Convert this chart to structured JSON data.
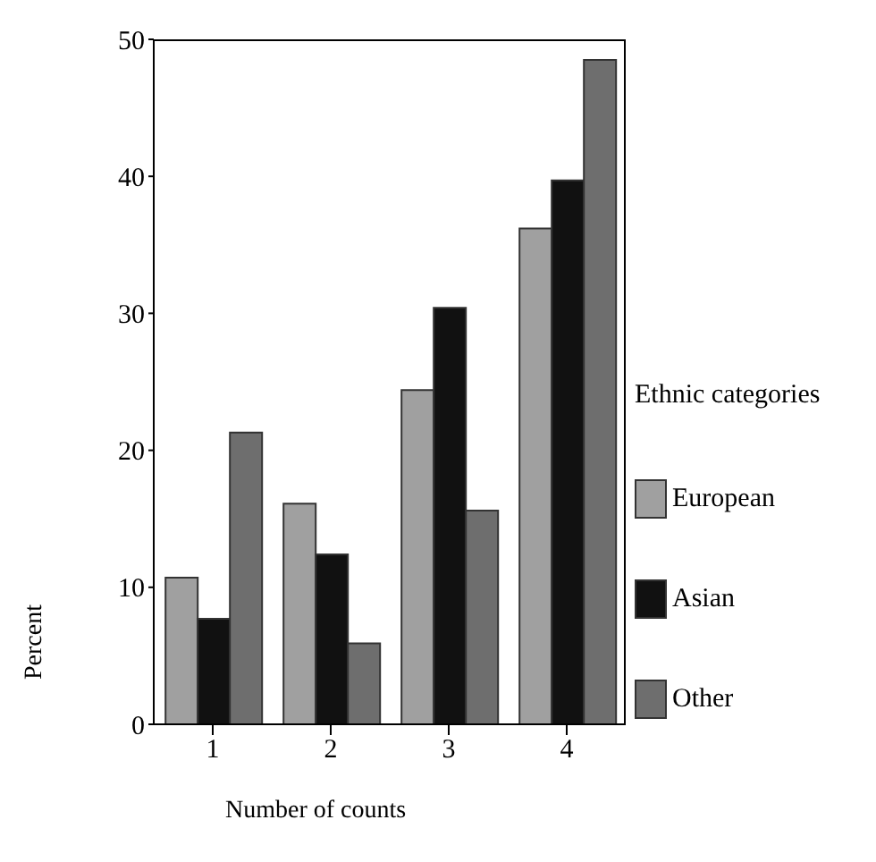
{
  "chart_data": {
    "type": "bar",
    "xlabel": "Number of counts",
    "ylabel": "Percent",
    "legend_title": "Ethnic categories",
    "categories": [
      "1",
      "2",
      "3",
      "4"
    ],
    "series": [
      {
        "name": "European",
        "color": "#a0a0a0",
        "values": [
          10.7,
          16.1,
          24.4,
          36.2
        ]
      },
      {
        "name": "Asian",
        "color": "#111111",
        "values": [
          7.7,
          12.4,
          30.4,
          39.7
        ]
      },
      {
        "name": "Other",
        "color": "#6e6e6e",
        "values": [
          21.3,
          5.9,
          15.6,
          48.5
        ]
      }
    ],
    "ylim": [
      0,
      50
    ],
    "yticks": [
      0,
      10,
      20,
      30,
      40,
      50
    ],
    "legend": "right"
  }
}
